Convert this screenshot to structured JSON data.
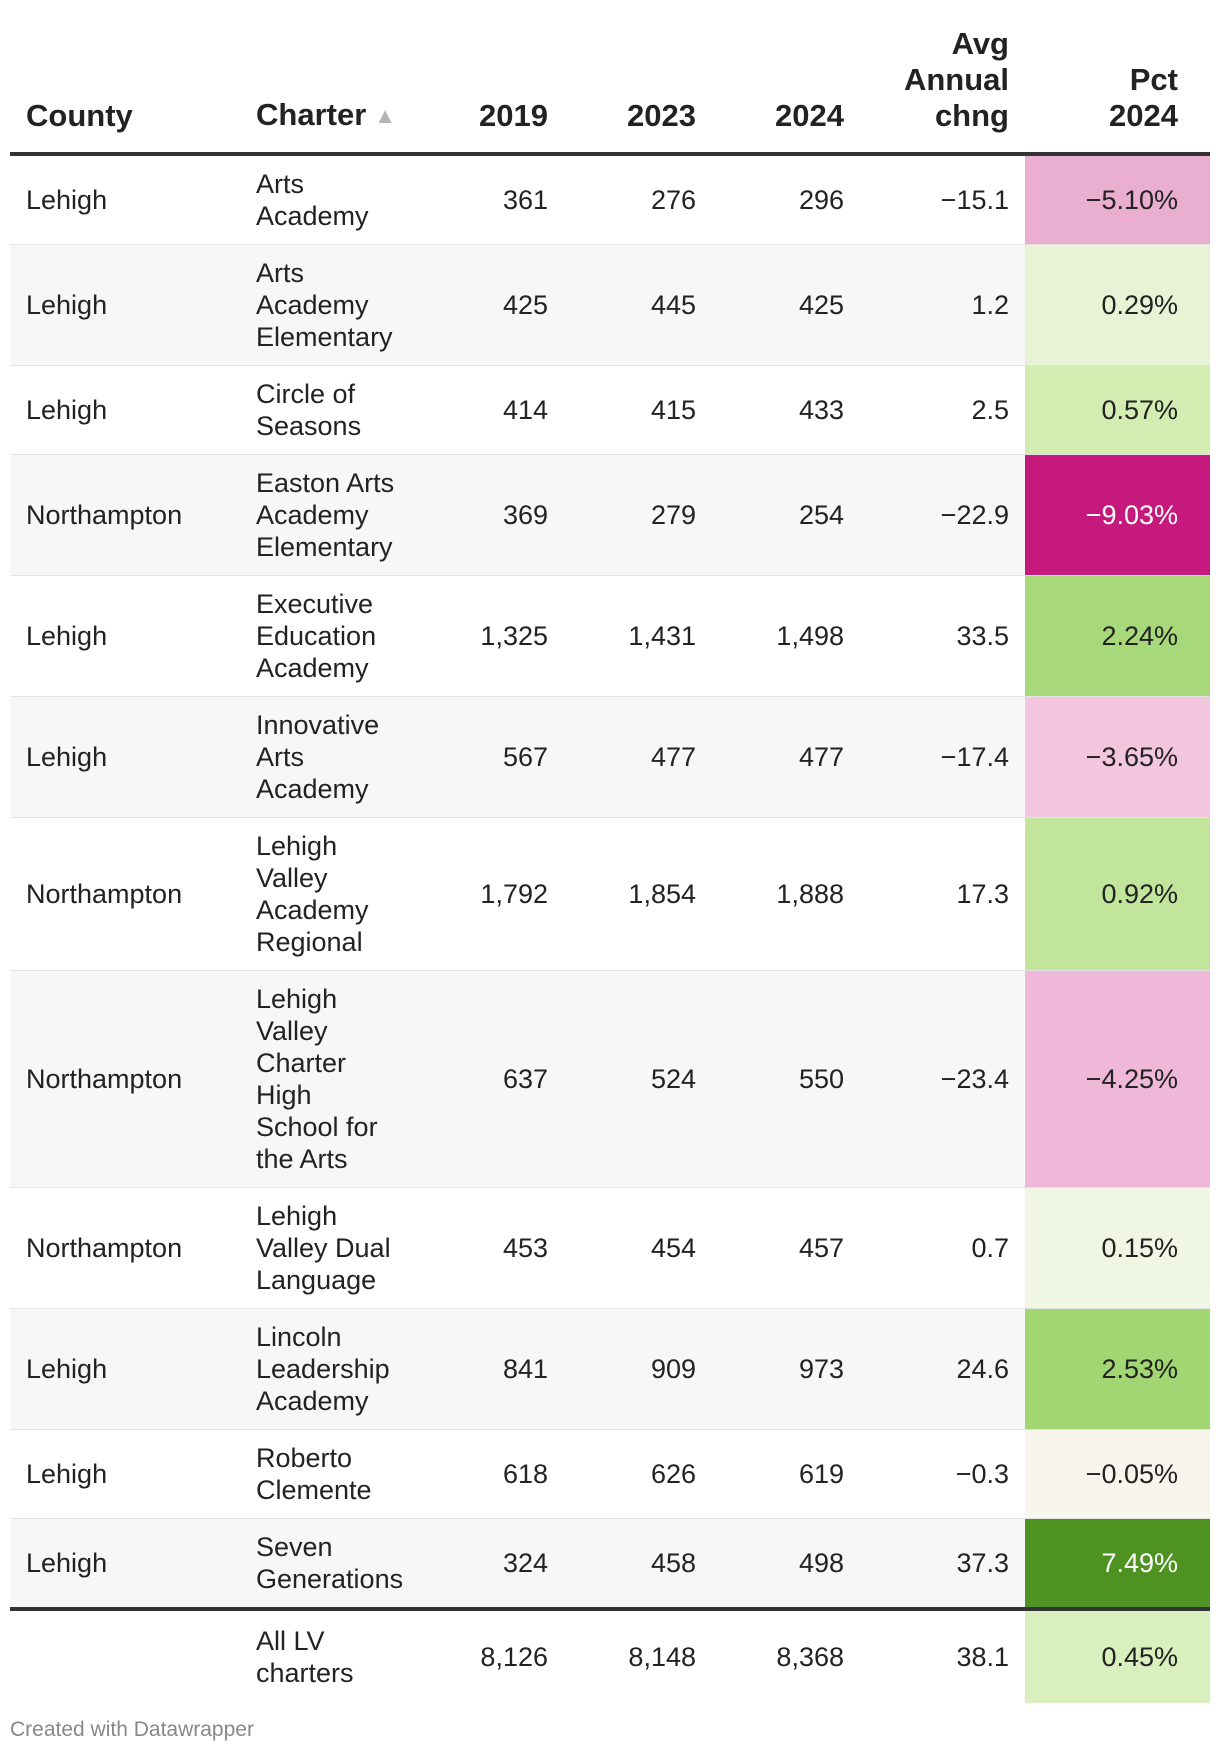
{
  "columns": {
    "county": "County",
    "charter": "Charter",
    "y2019": "2019",
    "y2023": "2023",
    "y2024": "2024",
    "avg": [
      "Avg",
      "Annual",
      "chng"
    ],
    "pct": [
      "Pct",
      "2024"
    ]
  },
  "sort_icon": "sort-ascending-triangle-icon",
  "chart_data": {
    "type": "table",
    "columns": [
      "County",
      "Charter",
      "2019",
      "2023",
      "2024",
      "Avg Annual chng",
      "Pct 2024"
    ],
    "rows": [
      {
        "county": "Lehigh",
        "charter": "Arts Academy",
        "y2019": "361",
        "y2023": "276",
        "y2024": "296",
        "avg": "−15.1",
        "pct": "−5.10%",
        "pct_value": -5.1,
        "color": "#eaaed0",
        "text": "#222222"
      },
      {
        "county": "Lehigh",
        "charter": "Arts Academy Elementary",
        "y2019": "425",
        "y2023": "445",
        "y2024": "425",
        "avg": "1.2",
        "pct": "0.29%",
        "pct_value": 0.29,
        "color": "#e8f3d6",
        "text": "#222222"
      },
      {
        "county": "Lehigh",
        "charter": "Circle of Seasons",
        "y2019": "414",
        "y2023": "415",
        "y2024": "433",
        "avg": "2.5",
        "pct": "0.57%",
        "pct_value": 0.57,
        "color": "#d3ecb1",
        "text": "#222222"
      },
      {
        "county": "Northampton",
        "charter": "Easton Arts Academy Elementary",
        "y2019": "369",
        "y2023": "279",
        "y2024": "254",
        "avg": "−22.9",
        "pct": "−9.03%",
        "pct_value": -9.03,
        "color": "#c5197d",
        "text": "#ffffff"
      },
      {
        "county": "Lehigh",
        "charter": "Executive Education Academy",
        "y2019": "1,325",
        "y2023": "1,431",
        "y2024": "1,498",
        "avg": "33.5",
        "pct": "2.24%",
        "pct_value": 2.24,
        "color": "#a7d97a",
        "text": "#222222"
      },
      {
        "county": "Lehigh",
        "charter": "Innovative Arts Academy",
        "y2019": "567",
        "y2023": "477",
        "y2024": "477",
        "avg": "−17.4",
        "pct": "−3.65%",
        "pct_value": -3.65,
        "color": "#f3c6df",
        "text": "#222222"
      },
      {
        "county": "Northampton",
        "charter": "Lehigh Valley Academy Regional",
        "y2019": "1,792",
        "y2023": "1,854",
        "y2024": "1,888",
        "avg": "17.3",
        "pct": "0.92%",
        "pct_value": 0.92,
        "color": "#c1e59a",
        "text": "#222222"
      },
      {
        "county": "Northampton",
        "charter": "Lehigh Valley Charter High School for the Arts",
        "y2019": "637",
        "y2023": "524",
        "y2024": "550",
        "avg": "−23.4",
        "pct": "−4.25%",
        "pct_value": -4.25,
        "color": "#f0b8d8",
        "text": "#222222"
      },
      {
        "county": "Northampton",
        "charter": "Lehigh Valley Dual Language",
        "y2019": "453",
        "y2023": "454",
        "y2024": "457",
        "avg": "0.7",
        "pct": "0.15%",
        "pct_value": 0.15,
        "color": "#eff6e3",
        "text": "#222222"
      },
      {
        "county": "Lehigh",
        "charter": "Lincoln Leadership Academy",
        "y2019": "841",
        "y2023": "909",
        "y2024": "973",
        "avg": "24.6",
        "pct": "2.53%",
        "pct_value": 2.53,
        "color": "#a1d673",
        "text": "#222222"
      },
      {
        "county": "Lehigh",
        "charter": "Roberto Clemente",
        "y2019": "618",
        "y2023": "626",
        "y2024": "619",
        "avg": "−0.3",
        "pct": "−0.05%",
        "pct_value": -0.05,
        "color": "#f8f5ec",
        "text": "#222222"
      },
      {
        "county": "Lehigh",
        "charter": "Seven Generations",
        "y2019": "324",
        "y2023": "458",
        "y2024": "498",
        "avg": "37.3",
        "pct": "7.49%",
        "pct_value": 7.49,
        "color": "#4e9321",
        "text": "#ffffff"
      }
    ],
    "total": {
      "county": "",
      "charter": "All LV charters",
      "y2019": "8,126",
      "y2023": "8,148",
      "y2024": "8,368",
      "avg": "38.1",
      "pct": "0.45%",
      "pct_value": 0.45,
      "color": "#d9efbd",
      "text": "#222222"
    }
  },
  "credit": "Created with Datawrapper"
}
